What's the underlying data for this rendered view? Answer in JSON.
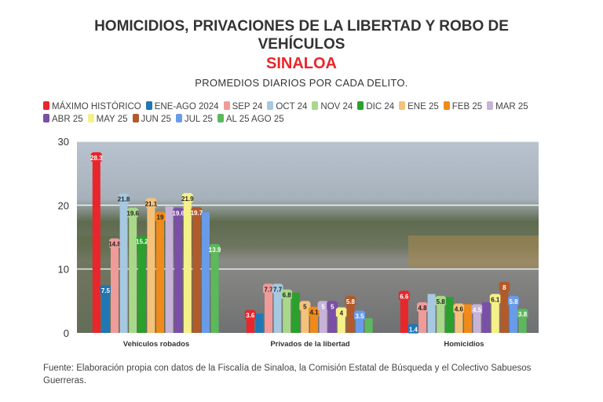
{
  "title": "HOMICIDIOS, PRIVACIONES DE LA LIBERTAD Y ROBO DE VEHÍCULOS",
  "state": "SINALOA",
  "subtitle": "PROMEDIOS DIARIOS POR CADA DELITO.",
  "source": "Fuente: Elaboración propia con datos de la Fiscalía de Sinaloa, la Comisión Estatal de Búsqueda y el Colectivo Sabuesos Guerreras.",
  "chart_data": {
    "type": "bar",
    "categories": [
      "Vehículos robados",
      "Privados de la libertad",
      "Homicidios"
    ],
    "ylim": [
      0,
      30
    ],
    "yticks": [
      0,
      10,
      20,
      30
    ],
    "grid": true,
    "legend": "top",
    "series": [
      {
        "name": "MÁXIMO HISTÓRICO",
        "color": "#e8262b",
        "values": [
          28.3,
          3.6,
          6.6
        ],
        "labels": [
          "28.3",
          "3.6",
          "6.6"
        ]
      },
      {
        "name": "ENE-AGO 2024",
        "color": "#1f77b4",
        "values": [
          7.5,
          3.0,
          1.4
        ],
        "labels": [
          "7.5",
          "",
          "1.4"
        ]
      },
      {
        "name": "SEP 24",
        "color": "#f09a9a",
        "values": [
          14.8,
          7.7,
          4.8
        ],
        "labels": [
          "14.8",
          "7.7",
          "4.8"
        ]
      },
      {
        "name": "OCT 24",
        "color": "#a6c8e0",
        "values": [
          21.8,
          7.7,
          6.1
        ],
        "labels": [
          "21.8",
          "7.7",
          ""
        ]
      },
      {
        "name": "NOV 24",
        "color": "#a8d88a",
        "values": [
          19.6,
          6.8,
          5.8
        ],
        "labels": [
          "19.6",
          "6.8",
          "5.8"
        ]
      },
      {
        "name": "DIC 24",
        "color": "#2ca02c",
        "values": [
          15.2,
          6.3,
          5.6
        ],
        "labels": [
          "15.2",
          "",
          ""
        ]
      },
      {
        "name": "ENE 25",
        "color": "#f5c27a",
        "values": [
          21.1,
          5,
          4.6
        ],
        "labels": [
          "21.1",
          "5",
          "4.6"
        ]
      },
      {
        "name": "FEB 25",
        "color": "#f08a1a",
        "values": [
          19,
          4.1,
          4.5
        ],
        "labels": [
          "19",
          "4.1",
          ""
        ]
      },
      {
        "name": "MAR 25",
        "color": "#c7b3d8",
        "values": [
          19.8,
          5,
          4.5
        ],
        "labels": [
          "",
          "5",
          "4.5"
        ]
      },
      {
        "name": "ABR 25",
        "color": "#7b4ea8",
        "values": [
          19.6,
          5,
          4.8
        ],
        "labels": [
          "19.6",
          "5",
          ""
        ]
      },
      {
        "name": "MAY 25",
        "color": "#f5f08a",
        "values": [
          21.9,
          4,
          6.1
        ],
        "labels": [
          "21.9",
          "4",
          "6.1"
        ]
      },
      {
        "name": "JUN 25",
        "color": "#b35a2a",
        "values": [
          19.7,
          5.8,
          8
        ],
        "labels": [
          "19.7",
          "5.8",
          "8"
        ]
      },
      {
        "name": "JUL 25",
        "color": "#6a9be8",
        "values": [
          18.9,
          3.5,
          5.8
        ],
        "labels": [
          "",
          "3.5",
          "5.8"
        ]
      },
      {
        "name": "AL 25 AGO 25",
        "color": "#5cb85c",
        "values": [
          13.9,
          2.3,
          3.8
        ],
        "labels": [
          "13.9",
          "",
          "3.8"
        ]
      }
    ]
  }
}
